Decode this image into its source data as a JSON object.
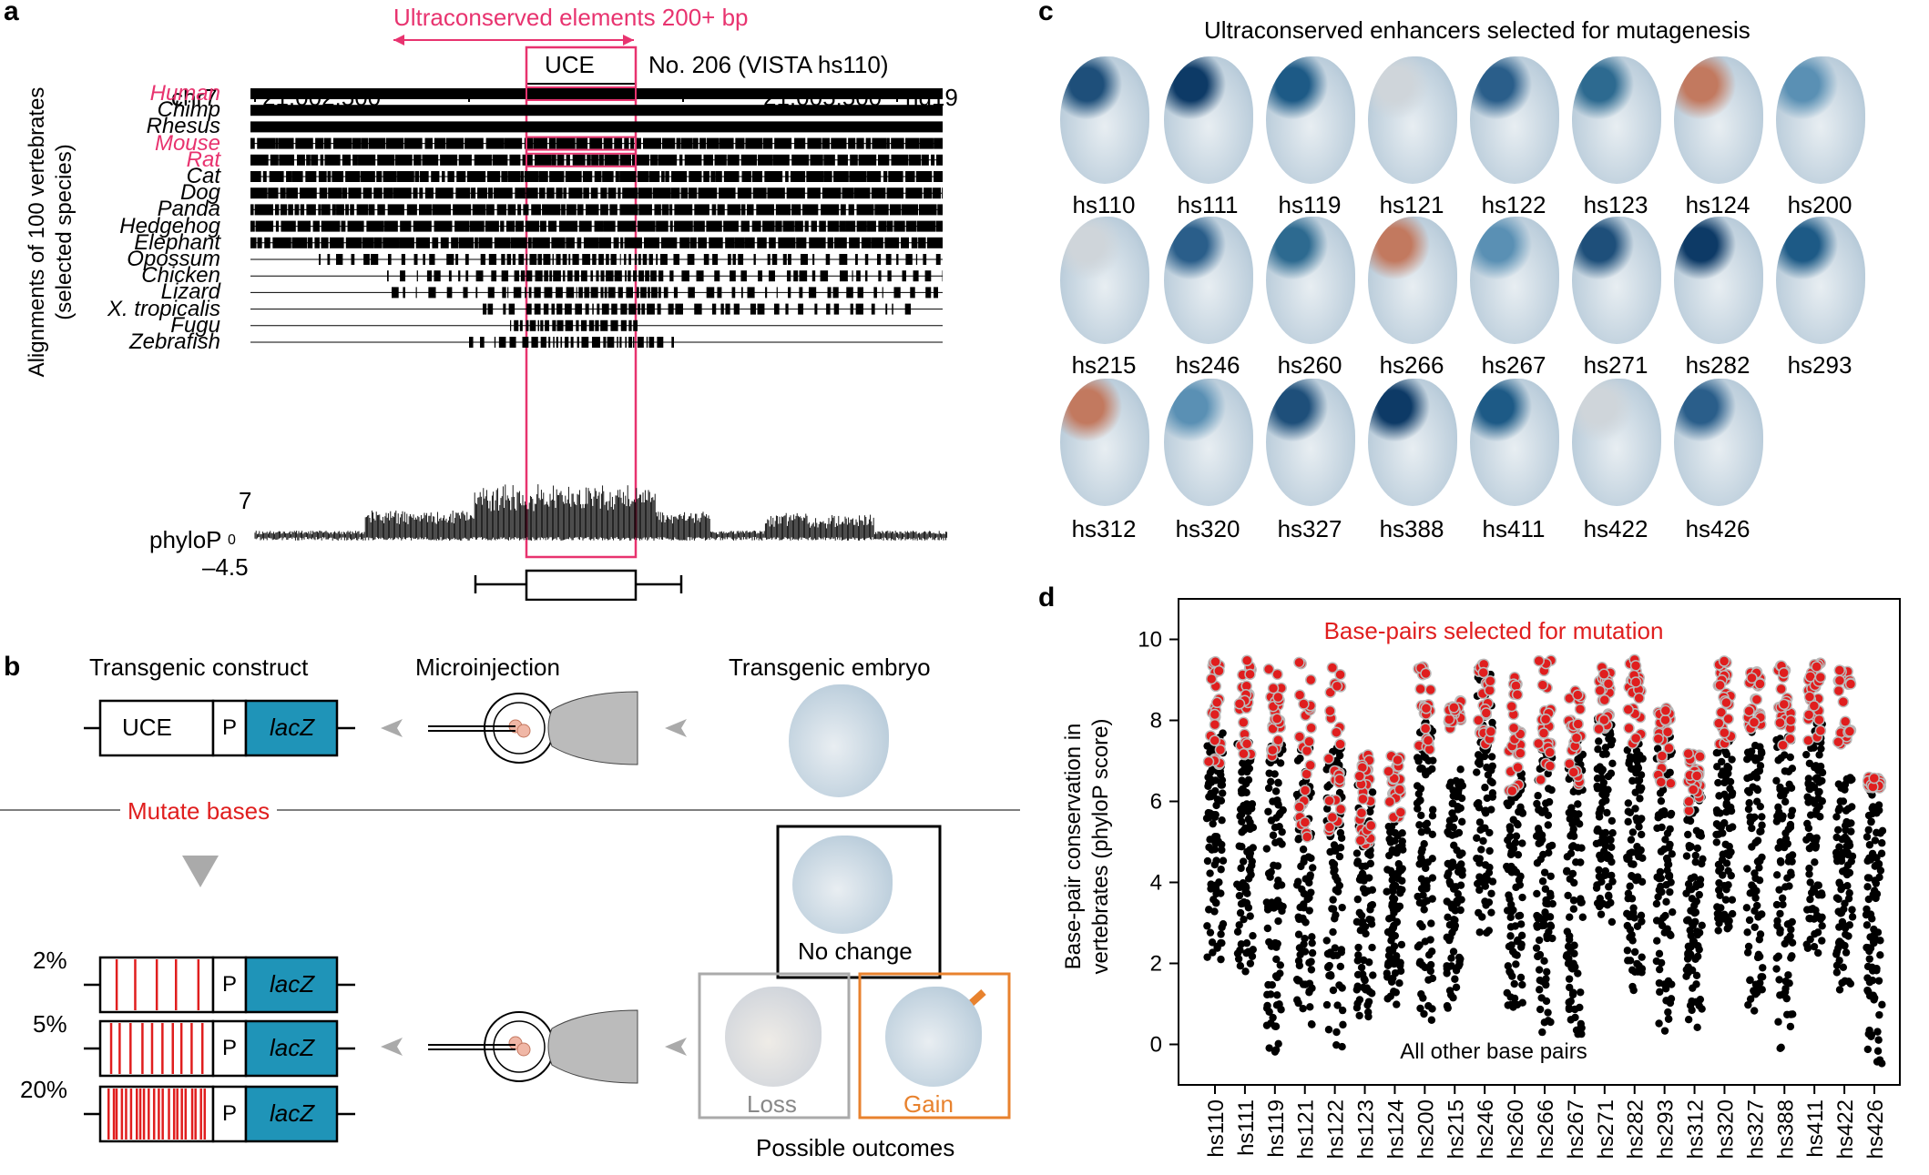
{
  "panel_a": {
    "label": "a",
    "uce_range_title": "Ultraconserved elements 200+ bp",
    "uce_box_label": "UCE",
    "uce_id": "No. 206 (VISTA hs110)",
    "chromosome": "chr7",
    "coord_left": "21,002,500",
    "coord_right": "21,005,500",
    "assembly": "hg19",
    "y_axis_label_line1": "Alignments of 100 vertebrates",
    "y_axis_label_line2": "(selected species)",
    "species": [
      "Human",
      "Chimp",
      "Rhesus",
      "Mouse",
      "Rat",
      "Cat",
      "Dog",
      "Panda",
      "Hedgehog",
      "Elephant",
      "Opossum",
      "Chicken",
      "Lizard",
      "X. tropicalis",
      "Fugu",
      "Zebrafish"
    ],
    "highlight_species": [
      "Human",
      "Mouse",
      "Rat"
    ],
    "phylop_label": "phyloP",
    "phylop_max": "7",
    "phylop_zero": "0",
    "phylop_min": "–4.5",
    "highlight_color": "#e8336f"
  },
  "panel_b": {
    "label": "b",
    "step1": "Transgenic construct",
    "step2": "Microinjection",
    "step3": "Transgenic embryo",
    "construct_uce": "UCE",
    "construct_p": "P",
    "construct_lacz": "lacZ",
    "mutate_label": "Mutate bases",
    "mutation_rates": [
      "2%",
      "5%",
      "20%"
    ],
    "outcome_no_change": "No change",
    "outcome_loss": "Loss",
    "outcome_gain": "Gain",
    "outcomes_caption": "Possible outcomes",
    "lacz_color": "#1f94b8",
    "mutation_color": "#e01e1e",
    "gain_color": "#e8822e"
  },
  "panel_c": {
    "label": "c",
    "title": "Ultraconserved enhancers selected for mutagenesis",
    "rows": [
      [
        "hs110",
        "hs111",
        "hs119",
        "hs121",
        "hs122",
        "hs123",
        "hs124",
        "hs200"
      ],
      [
        "hs215",
        "hs246",
        "hs260",
        "hs266",
        "hs267",
        "hs271",
        "hs282",
        "hs293"
      ],
      [
        "hs312",
        "hs320",
        "hs327",
        "hs388",
        "hs411",
        "hs422",
        "hs426"
      ]
    ]
  },
  "panel_d": {
    "label": "d",
    "chart_data": {
      "type": "scatter",
      "title": "Base-pairs selected for mutation",
      "ylabel_line1": "Base-pair conservation in",
      "ylabel_line2": "vertebrates (phyloP score)",
      "bottom_annotation": "All other base pairs",
      "ylim": [
        -1,
        11
      ],
      "yticks": [
        "0",
        "2",
        "4",
        "6",
        "8",
        "10"
      ],
      "categories": [
        "hs110",
        "hs111",
        "hs119",
        "hs121",
        "hs122",
        "hs123",
        "hs124",
        "hs200",
        "hs215",
        "hs246",
        "hs260",
        "hs266",
        "hs267",
        "hs271",
        "hs282",
        "hs293",
        "hs312",
        "hs320",
        "hs327",
        "hs388",
        "hs411",
        "hs422",
        "hs426"
      ],
      "selected_min": [
        6.9,
        7.1,
        7.0,
        5.0,
        5.1,
        4.9,
        5.6,
        7.2,
        7.8,
        7.4,
        6.2,
        6.5,
        6.3,
        7.6,
        7.4,
        6.4,
        5.6,
        7.4,
        7.8,
        7.3,
        7.5,
        7.4,
        6.3
      ],
      "selected_max": [
        9.5,
        9.5,
        9.3,
        9.5,
        9.4,
        7.2,
        7.2,
        9.4,
        8.5,
        9.4,
        9.1,
        9.5,
        9.0,
        9.4,
        9.5,
        8.3,
        7.2,
        9.5,
        9.2,
        9.4,
        9.5,
        9.3,
        6.6
      ],
      "other_min": [
        2.0,
        1.8,
        -0.3,
        0.4,
        -0.1,
        0.3,
        0.9,
        0.5,
        0.7,
        2.3,
        0.8,
        0.2,
        0.2,
        2.9,
        1.3,
        0.3,
        0.3,
        2.7,
        0.5,
        -0.2,
        2.2,
        1.3,
        -0.7
      ],
      "other_max": [
        7.7,
        7.5,
        7.4,
        7.5,
        7.6,
        6.5,
        5.5,
        8.0,
        6.8,
        9.3,
        6.7,
        7.4,
        7.6,
        8.1,
        7.6,
        7.7,
        6.2,
        7.7,
        8.0,
        7.6,
        8.0,
        6.6,
        6.4
      ],
      "selected_color": "#e01e1e",
      "other_color": "#000000"
    }
  }
}
